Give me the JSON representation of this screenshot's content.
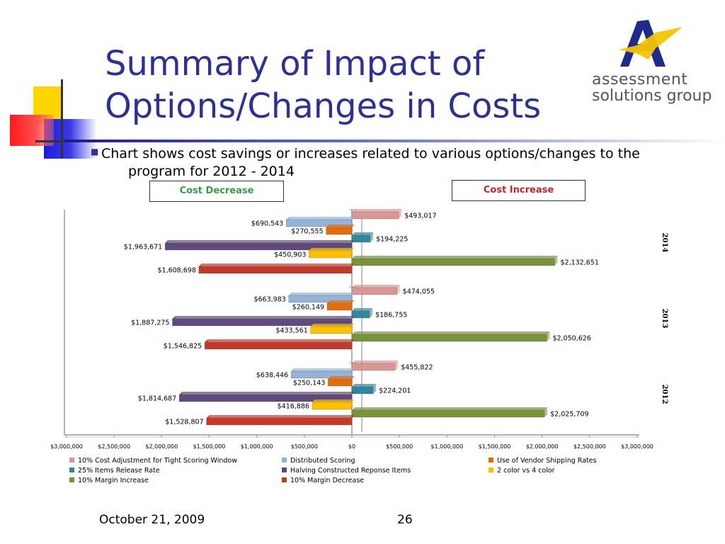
{
  "slide": {
    "title_line1": "Summary of Impact of",
    "title_line2": "Options/Changes in Costs",
    "bullet_line1": "Chart shows cost savings or increases related to various options/changes to the",
    "bullet_line2": "program for 2012 - 2014",
    "cost_decrease_label": "Cost Decrease",
    "cost_increase_label": "Cost Increase",
    "footer_date": "October 21, 2009",
    "page_number": "26"
  },
  "logo": {
    "line1": "assessment",
    "line2": "solutions group",
    "icon": "logo-a-icon",
    "colors": {
      "letter": "#1f2a8a",
      "accent": "#f5c400"
    }
  },
  "chart_data": {
    "type": "bar",
    "orientation": "horizontal",
    "title": "",
    "xlabel": "",
    "ylabel": "",
    "xlim": [
      -3000000,
      3000000
    ],
    "x_ticks": [
      "$3,000,000",
      "$2,500,000",
      "$2,000,000",
      "$1,500,000",
      "$1,000,000",
      "$500,000",
      "$0",
      "$500,000",
      "$1,000,000",
      "$1,500,000",
      "$2,000,000",
      "$2,500,000",
      "$3,000,000"
    ],
    "groups": [
      {
        "label": "2014",
        "values": [
          {
            "series": "10% Cost Adjustment for Tight Scoring Window",
            "value": 493017,
            "label": "$493,017"
          },
          {
            "series": "Distributed Scoring",
            "value": -690543,
            "label": "$690,543"
          },
          {
            "series": "Use of Vendor Shipping Rates",
            "value": -270555,
            "label": "$270,555"
          },
          {
            "series": "25% Items Release Rate",
            "value": 194225,
            "label": "$194,225"
          },
          {
            "series": "Halving Constructed Reponse Items",
            "value": -1963671,
            "label": "$1,963,671"
          },
          {
            "series": "2 color vs 4 color",
            "value": -450903,
            "label": "$450,903"
          },
          {
            "series": "10% Margin Increase",
            "value": 2132651,
            "label": "$2,132,651"
          },
          {
            "series": "10% Margin Decrease",
            "value": -1608698,
            "label": "$1,608,698"
          }
        ]
      },
      {
        "label": "2013",
        "values": [
          {
            "series": "10% Cost Adjustment for Tight Scoring Window",
            "value": 474055,
            "label": "$474,055"
          },
          {
            "series": "Distributed Scoring",
            "value": -663983,
            "label": "$663,983"
          },
          {
            "series": "Use of Vendor Shipping Rates",
            "value": -260149,
            "label": "$260,149"
          },
          {
            "series": "25% Items Release Rate",
            "value": 186755,
            "label": "$186,755"
          },
          {
            "series": "Halving Constructed Reponse Items",
            "value": -1887275,
            "label": "$1,887,275"
          },
          {
            "series": "2 color vs 4 color",
            "value": -433561,
            "label": "$433,561"
          },
          {
            "series": "10% Margin Increase",
            "value": 2050626,
            "label": "$2,050,626"
          },
          {
            "series": "10% Margin Decrease",
            "value": -1546825,
            "label": "$1,546,825"
          }
        ]
      },
      {
        "label": "2012",
        "values": [
          {
            "series": "10% Cost Adjustment for Tight Scoring Window",
            "value": 455822,
            "label": "$455,822"
          },
          {
            "series": "Distributed Scoring",
            "value": -638446,
            "label": "$638,446"
          },
          {
            "series": "Use of Vendor Shipping Rates",
            "value": -250143,
            "label": "$250,143"
          },
          {
            "series": "25% Items Release Rate",
            "value": 224201,
            "label": "$224,201"
          },
          {
            "series": "Halving Constructed Reponse Items",
            "value": -1814687,
            "label": "$1,814,687"
          },
          {
            "series": "2 color vs 4 color",
            "value": -416886,
            "label": "$416,886"
          },
          {
            "series": "10% Margin Increase",
            "value": 2025709,
            "label": "$2,025,709"
          },
          {
            "series": "10% Margin Decrease",
            "value": -1528807,
            "label": "$1,528,807"
          }
        ]
      }
    ],
    "legend": {
      "placement": "bottom",
      "items": [
        {
          "name": "10% Cost Adjustment for Tight Scoring Window",
          "color": "#d99694"
        },
        {
          "name": "Distributed Scoring",
          "color": "#95b3d7"
        },
        {
          "name": "Use of Vendor Shipping Rates",
          "color": "#e46c0a"
        },
        {
          "name": "25% Items Release Rate",
          "color": "#31859c"
        },
        {
          "name": "Halving Constructed Reponse Items",
          "color": "#604a7b"
        },
        {
          "name": "2 color vs 4 color",
          "color": "#ffc000"
        },
        {
          "name": "10% Margin Increase",
          "color": "#77933c"
        },
        {
          "name": "10% Margin Decrease",
          "color": "#c0392b"
        }
      ]
    },
    "grid": false
  }
}
